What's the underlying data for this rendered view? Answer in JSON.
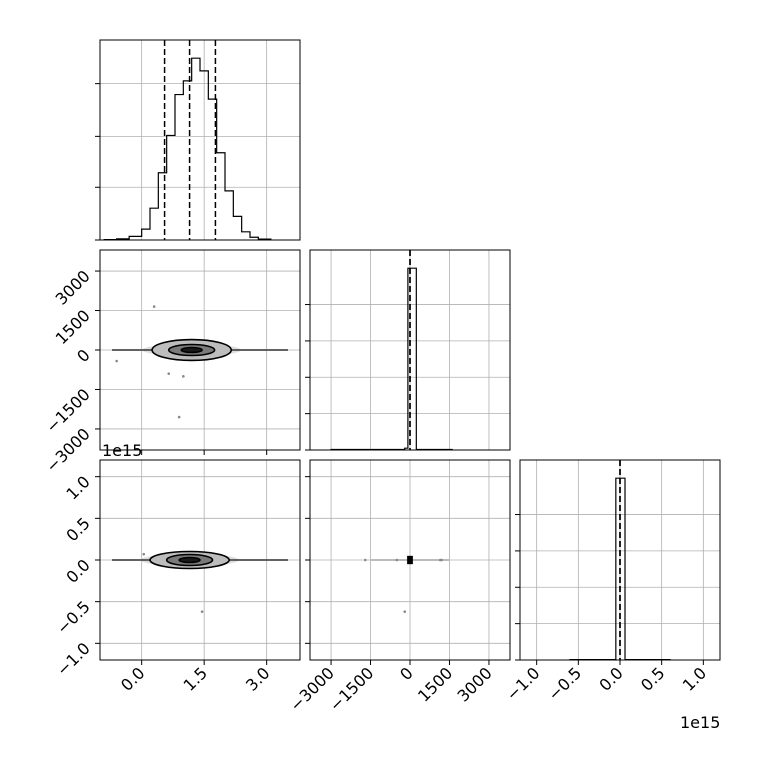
{
  "chart_data": {
    "type": "corner",
    "exponent_labels": {
      "y_bottom_row": "1e15",
      "x_last_column": "1e15"
    },
    "panels": [
      {
        "name": "hist-param0",
        "type": "histogram",
        "x_range": [
          -1.0,
          3.8
        ],
        "bins": [
          {
            "x0": -0.9,
            "x1": -0.6,
            "count": 0.2
          },
          {
            "x0": -0.6,
            "x1": -0.3,
            "count": 0.6
          },
          {
            "x0": -0.3,
            "x1": 0.0,
            "count": 2.0
          },
          {
            "x0": 0.0,
            "x1": 0.2,
            "count": 6.0
          },
          {
            "x0": 0.2,
            "x1": 0.4,
            "count": 17.5
          },
          {
            "x0": 0.4,
            "x1": 0.6,
            "count": 37.0
          },
          {
            "x0": 0.6,
            "x1": 0.8,
            "count": 57.5
          },
          {
            "x0": 0.8,
            "x1": 1.0,
            "count": 80.0
          },
          {
            "x0": 1.0,
            "x1": 1.2,
            "count": 87.5
          },
          {
            "x0": 1.2,
            "x1": 1.4,
            "count": 100.0
          },
          {
            "x0": 1.4,
            "x1": 1.6,
            "count": 93.0
          },
          {
            "x0": 1.6,
            "x1": 1.8,
            "count": 77.5
          },
          {
            "x0": 1.8,
            "x1": 2.0,
            "count": 48.0
          },
          {
            "x0": 2.0,
            "x1": 2.2,
            "count": 27.0
          },
          {
            "x0": 2.2,
            "x1": 2.4,
            "count": 13.0
          },
          {
            "x0": 2.4,
            "x1": 2.6,
            "count": 4.5
          },
          {
            "x0": 2.6,
            "x1": 2.8,
            "count": 1.5
          },
          {
            "x0": 2.8,
            "x1": 3.1,
            "count": 0.5
          }
        ],
        "y_ticks": [
          0,
          29,
          57,
          86
        ],
        "quantiles": [
          0.55,
          1.15,
          1.77
        ]
      },
      {
        "name": "hist-param1",
        "type": "histogram",
        "x_range": [
          -3800,
          3800
        ],
        "bins": [
          {
            "x0": -3000,
            "x1": -200,
            "count": 0.3
          },
          {
            "x0": -200,
            "x1": -80,
            "count": 1.0
          },
          {
            "x0": -80,
            "x1": 240,
            "count": 100.0
          },
          {
            "x0": 240,
            "x1": 1600,
            "count": 0.3
          }
        ],
        "y_ticks": [
          0,
          20,
          40,
          60,
          80
        ],
        "quantiles": [
          0,
          0
        ]
      },
      {
        "name": "hist-param2",
        "type": "histogram",
        "x_range": [
          -1.2,
          1.2
        ],
        "bins": [
          {
            "x0": -0.6,
            "x1": -0.05,
            "count": 0.2
          },
          {
            "x0": -0.05,
            "x1": 0.06,
            "count": 100.0
          },
          {
            "x0": 0.06,
            "x1": 0.6,
            "count": 0.2
          }
        ],
        "y_ticks": [
          0,
          20,
          40,
          60,
          80
        ],
        "quantiles": [
          0,
          0
        ]
      }
    ],
    "axes": {
      "col0_x_range": [
        -1.0,
        3.8
      ],
      "col1_x_range": [
        -3800,
        3800
      ],
      "col2_x_range": [
        -1.2,
        1.2
      ],
      "row1_y_range": [
        -3800,
        3800
      ],
      "row2_y_range": [
        -1.2,
        1.2
      ],
      "col0_xticks": [
        0.0,
        1.5,
        3.0
      ],
      "col0_xtick_labels": [
        "0.0",
        "1.5",
        "3.0"
      ],
      "col1_xticks": [
        -3000,
        -1500,
        0,
        1500,
        3000
      ],
      "col1_xtick_labels": [
        "−3000",
        "−1500",
        "0",
        "1500",
        "3000"
      ],
      "col2_xticks": [
        -1.0,
        -0.5,
        0.0,
        0.5,
        1.0
      ],
      "col2_xtick_labels": [
        "−1.0",
        "−0.5",
        "0.0",
        "0.5",
        "1.0"
      ],
      "row1_yticks": [
        3000,
        1500,
        0,
        -1500,
        -3000
      ],
      "row1_ytick_labels": [
        "3000",
        "1500",
        "0",
        "−1500",
        "−3000"
      ],
      "row2_yticks": [
        1.0,
        0.5,
        0.0,
        -0.5,
        -1.0
      ],
      "row2_ytick_labels": [
        "1.0",
        "0.5",
        "0.0",
        "−0.5",
        "−1.0"
      ]
    },
    "scatter": {
      "p0_p1": {
        "center": [
          1.2,
          0
        ],
        "contours": [
          {
            "rx": 0.95,
            "ry": 170
          },
          {
            "rx": 0.55,
            "ry": 95
          },
          {
            "rx": 0.25,
            "ry": 45
          }
        ],
        "outliers": [
          [
            0.3,
            1650
          ],
          [
            1.0,
            -1000
          ],
          [
            0.65,
            -900
          ],
          [
            0.9,
            -2550
          ],
          [
            -0.6,
            -420
          ]
        ]
      },
      "p0_p2": {
        "center": [
          1.15,
          0
        ],
        "contours": [
          {
            "rx": 0.95,
            "ry": 0.015
          },
          {
            "rx": 0.55,
            "ry": 0.01
          },
          {
            "rx": 0.25,
            "ry": 0.005
          }
        ],
        "outliers": [
          [
            1.45,
            -0.62
          ],
          [
            0.05,
            0.07
          ]
        ]
      },
      "p1_p2": {
        "center": [
          0,
          0
        ],
        "core_half_width": [
          110,
          0.05
        ],
        "outliers": [
          [
            -1700,
            0
          ],
          [
            1200,
            0
          ],
          [
            1150,
            0
          ],
          [
            -200,
            -0.62
          ],
          [
            -500,
            0
          ]
        ]
      }
    }
  }
}
